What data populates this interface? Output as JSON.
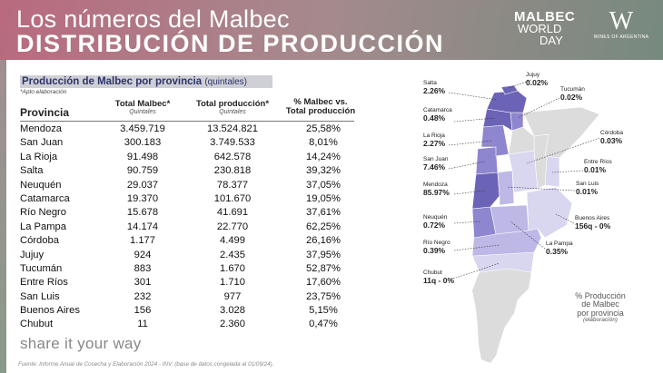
{
  "header": {
    "title_top": "Los números del Malbec",
    "title_main": "DISTRIBUCIÓN DE PRODUCCIÓN",
    "logo_mwd": [
      "MALBEC",
      "WORLD",
      "DAY"
    ],
    "logo_wa_big": "W",
    "logo_wa_small": "WINES OF ARGENTINA"
  },
  "table": {
    "title": "Producción de Malbec por provincia",
    "title_unit": "(quintales)",
    "note": "*Apto elaboración",
    "col_province": "Provincia",
    "col_malbec": "Total Malbec*",
    "col_malbec_sub": "Quintales",
    "col_total": "Total producción*",
    "col_total_sub": "Quintales",
    "col_pct_1": "% Malbec vs.",
    "col_pct_2": "Total producción",
    "rows": [
      {
        "province": "Mendoza",
        "malbec": "3.459.719",
        "total": "13.524.821",
        "pct": "25,58%"
      },
      {
        "province": "San Juan",
        "malbec": "300.183",
        "total": "3.749.533",
        "pct": "8,01%"
      },
      {
        "province": "La Rioja",
        "malbec": "91.498",
        "total": "642.578",
        "pct": "14,24%"
      },
      {
        "province": "Salta",
        "malbec": "90.759",
        "total": "230.818",
        "pct": "39,32%"
      },
      {
        "province": "Neuquén",
        "malbec": "29.037",
        "total": "78.377",
        "pct": "37,05%"
      },
      {
        "province": "Catamarca",
        "malbec": "19.370",
        "total": "101.670",
        "pct": "19,05%"
      },
      {
        "province": "Río Negro",
        "malbec": "15.678",
        "total": "41.691",
        "pct": "37,61%"
      },
      {
        "province": "La Pampa",
        "malbec": "14.174",
        "total": "22.770",
        "pct": "62,25%"
      },
      {
        "province": "Córdoba",
        "malbec": "1.177",
        "total": "4.499",
        "pct": "26,16%"
      },
      {
        "province": "Jujuy",
        "malbec": "924",
        "total": "2.435",
        "pct": "37,95%"
      },
      {
        "province": "Tucumán",
        "malbec": "883",
        "total": "1.670",
        "pct": "52,87%"
      },
      {
        "province": "Entre Ríos",
        "malbec": "301",
        "total": "1.710",
        "pct": "17,60%"
      },
      {
        "province": "San Luis",
        "malbec": "232",
        "total": "977",
        "pct": "23,75%"
      },
      {
        "province": "Buenos Aires",
        "malbec": "156",
        "total": "3.028",
        "pct": "5,15%"
      },
      {
        "province": "Chubut",
        "malbec": "11",
        "total": "2.360",
        "pct": "0,47%"
      }
    ]
  },
  "footer": {
    "share": "share it your way",
    "source": "Fuente: Informe Anual de Cosecha y Elaboración 2024 - INV. (base de datos congelada al 01/09/24)."
  },
  "map": {
    "colors": {
      "dark": "#6b63b5",
      "mid": "#8e86cf",
      "light": "#bdb8e6",
      "pale": "#d9d6f0",
      "gray": "#dcdcdc"
    },
    "labels": [
      {
        "name": "Jujuy",
        "value": "0.02%"
      },
      {
        "name": "Salta",
        "value": "2.26%"
      },
      {
        "name": "Tucumán",
        "value": "0.02%"
      },
      {
        "name": "Catamarca",
        "value": "0.48%"
      },
      {
        "name": "Córdoba",
        "value": "0.03%"
      },
      {
        "name": "La Rioja",
        "value": "2.27%"
      },
      {
        "name": "San Juan",
        "value": "7.46%"
      },
      {
        "name": "Entre Ríos",
        "value": "0.01%"
      },
      {
        "name": "Mendoza",
        "value": "85.97%"
      },
      {
        "name": "San Luis",
        "value": "0.01%"
      },
      {
        "name": "Neuquén",
        "value": "0.72%"
      },
      {
        "name": "Buenos Aires",
        "value": "156q - 0%"
      },
      {
        "name": "Río Negro",
        "value": "0.39%"
      },
      {
        "name": "La Pampa",
        "value": "0.35%"
      },
      {
        "name": "Chubut",
        "value": "11q - 0%"
      }
    ],
    "legend_1": "% Producción",
    "legend_2": "de Malbec",
    "legend_3": "por provincia",
    "legend_4": "(elaboración)"
  }
}
